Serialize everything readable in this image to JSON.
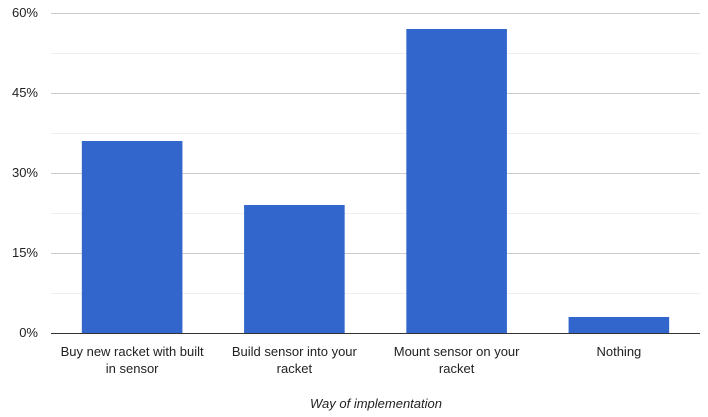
{
  "chart_data": {
    "type": "bar",
    "x_label": "Way of implementation",
    "categories": [
      "Buy new racket with built in sensor",
      "Build sensor into your racket",
      "Mount sensor on your racket",
      "Nothing"
    ],
    "values": [
      36,
      24,
      57,
      3
    ],
    "color": "#3366cc",
    "ylim": [
      0,
      60
    ],
    "yticks": [
      {
        "value": 0,
        "label": "0%"
      },
      {
        "value": 15,
        "label": "15%"
      },
      {
        "value": 30,
        "label": "30%"
      },
      {
        "value": 45,
        "label": "45%"
      },
      {
        "value": 60,
        "label": "60%"
      }
    ],
    "minor_yticks": [
      7.5,
      22.5,
      37.5,
      52.5
    ],
    "grid": true
  }
}
